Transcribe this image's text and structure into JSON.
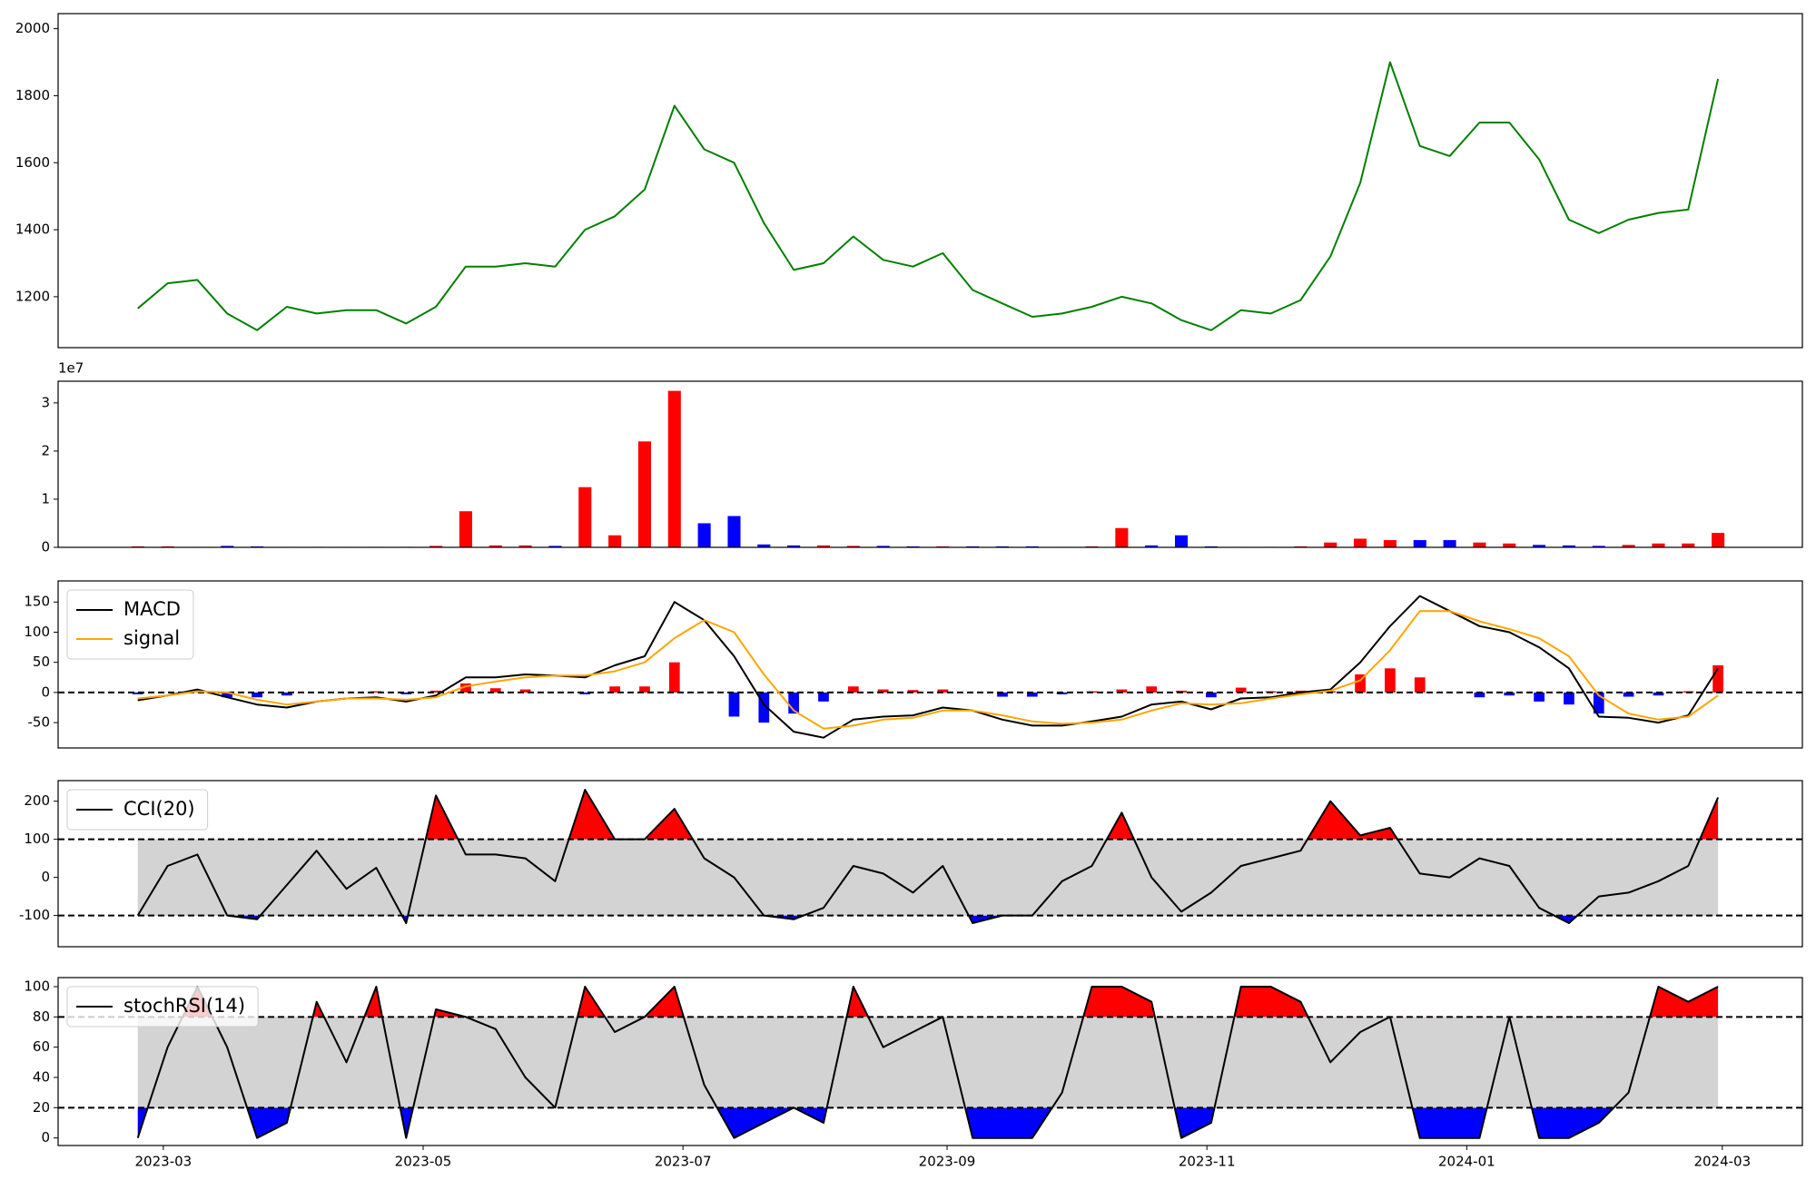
{
  "chart_data": {
    "type": "panels",
    "x": [
      19411,
      19418,
      19425,
      19432,
      19439,
      19446,
      19453,
      19460,
      19467,
      19474,
      19481,
      19488,
      19495,
      19502,
      19509,
      19516,
      19523,
      19530,
      19537,
      19544,
      19551,
      19558,
      19565,
      19572,
      19579,
      19586,
      19593,
      19600,
      19607,
      19614,
      19621,
      19628,
      19635,
      19642,
      19649,
      19656,
      19663,
      19670,
      19677,
      19684,
      19691,
      19698,
      19705,
      19712,
      19719,
      19726,
      19733,
      19740,
      19747,
      19754,
      19761,
      19768,
      19775,
      19782
    ],
    "xlim": [
      19392.3,
      19801.8
    ],
    "xticks": [
      {
        "value": 19417,
        "label": "2023-03"
      },
      {
        "value": 19478,
        "label": "2023-05"
      },
      {
        "value": 19539,
        "label": "2023-07"
      },
      {
        "value": 19601,
        "label": "2023-09"
      },
      {
        "value": 19662,
        "label": "2023-11"
      },
      {
        "value": 19723,
        "label": "2024-01"
      },
      {
        "value": 19783,
        "label": "2024-03"
      }
    ],
    "panels": [
      {
        "type": "line",
        "color": "green",
        "ylim": [
          1048,
          2045
        ],
        "yticks": [
          1200,
          1400,
          1600,
          1800,
          2000
        ],
        "values": [
          1165,
          1240,
          1250,
          1150,
          1100,
          1170,
          1150,
          1160,
          1160,
          1120,
          1170,
          1290,
          1290,
          1300,
          1290,
          1400,
          1440,
          1520,
          1770,
          1640,
          1600,
          1420,
          1280,
          1300,
          1380,
          1310,
          1290,
          1330,
          1220,
          1180,
          1140,
          1150,
          1170,
          1200,
          1180,
          1130,
          1100,
          1160,
          1150,
          1190,
          1320,
          1540,
          1900,
          1650,
          1620,
          1720,
          1720,
          1610,
          1430,
          1390,
          1430,
          1450,
          1460,
          1850
        ]
      },
      {
        "type": "bar",
        "offset_label": "1e7",
        "up_color": "red",
        "down_color": "blue",
        "ylim": [
          0,
          3.45
        ],
        "yticks": [
          0,
          1,
          2,
          3
        ],
        "values": [
          0.02,
          0.02,
          0.01,
          0.03,
          0.02,
          0.01,
          0.01,
          0.01,
          0.01,
          0.01,
          0.03,
          0.75,
          0.04,
          0.04,
          0.03,
          1.25,
          0.25,
          2.2,
          3.25,
          0.5,
          0.65,
          0.06,
          0.04,
          0.04,
          0.03,
          0.03,
          0.02,
          0.02,
          0.02,
          0.02,
          0.02,
          0.01,
          0.02,
          0.4,
          0.04,
          0.25,
          0.02,
          0.01,
          0.01,
          0.02,
          0.1,
          0.18,
          0.15,
          0.15,
          0.15,
          0.1,
          0.08,
          0.05,
          0.04,
          0.03,
          0.05,
          0.08,
          0.08,
          0.3
        ]
      },
      {
        "type": "macd",
        "legend": "upper left",
        "ylim": [
          -92,
          185
        ],
        "yticks": [
          -50,
          0,
          50,
          100,
          150
        ],
        "hlines": [
          0
        ],
        "series": [
          {
            "name": "MACD",
            "color": "black",
            "values": [
              -13,
              -5,
              5,
              -8,
              -20,
              -25,
              -15,
              -10,
              -8,
              -15,
              -5,
              25,
              25,
              30,
              28,
              25,
              45,
              60,
              150,
              120,
              60,
              -20,
              -65,
              -75,
              -45,
              -40,
              -38,
              -25,
              -30,
              -45,
              -55,
              -55,
              -48,
              -40,
              -20,
              -15,
              -28,
              -10,
              -8,
              0,
              5,
              50,
              110,
              160,
              135,
              110,
              100,
              75,
              40,
              -40,
              -42,
              -50,
              -38,
              40
            ]
          },
          {
            "name": "signal",
            "color": "orange",
            "values": [
              -10,
              -5,
              2,
              0,
              -12,
              -20,
              -15,
              -10,
              -10,
              -12,
              -8,
              10,
              18,
              25,
              28,
              28,
              35,
              50,
              90,
              120,
              100,
              30,
              -30,
              -60,
              -55,
              -45,
              -42,
              -30,
              -30,
              -38,
              -48,
              -52,
              -50,
              -45,
              -30,
              -18,
              -20,
              -18,
              -10,
              -3,
              3,
              20,
              70,
              135,
              135,
              118,
              105,
              90,
              60,
              -5,
              -35,
              -45,
              -40,
              -5
            ]
          }
        ],
        "histogram": {
          "up_color": "red",
          "down_color": "blue",
          "values": [
            -3,
            0,
            3,
            -8,
            -8,
            -5,
            0,
            0,
            2,
            -3,
            3,
            15,
            7,
            5,
            0,
            -3,
            10,
            10,
            50,
            0,
            -40,
            -50,
            -35,
            -15,
            10,
            5,
            4,
            5,
            0,
            -7,
            -7,
            -3,
            2,
            5,
            10,
            3,
            -8,
            8,
            2,
            3,
            2,
            30,
            40,
            25,
            0,
            -8,
            -5,
            -15,
            -20,
            -35,
            -7,
            -5,
            2,
            45
          ]
        }
      },
      {
        "type": "band",
        "legend": "upper left",
        "ylim": [
          -182,
          254
        ],
        "yticks": [
          -100,
          0,
          100,
          200
        ],
        "bands": [
          -100,
          100
        ],
        "band_color": "lightgray",
        "above_color": "red",
        "below_color": "blue",
        "series": [
          {
            "name": "CCI(20)",
            "color": "black",
            "values": [
              -100,
              30,
              60,
              -100,
              -110,
              -20,
              70,
              -30,
              25,
              -120,
              215,
              60,
              60,
              50,
              -10,
              230,
              100,
              100,
              180,
              50,
              0,
              -100,
              -110,
              -80,
              30,
              10,
              -40,
              30,
              -120,
              -100,
              -100,
              -10,
              30,
              170,
              0,
              -90,
              -40,
              30,
              50,
              70,
              200,
              110,
              130,
              10,
              0,
              50,
              30,
              -80,
              -120,
              -50,
              -40,
              -10,
              30,
              210
            ]
          }
        ]
      },
      {
        "type": "band",
        "legend": "upper left",
        "ylim": [
          -5,
          106
        ],
        "yticks": [
          0,
          20,
          40,
          60,
          80,
          100
        ],
        "bands": [
          20,
          80
        ],
        "band_color": "lightgray",
        "above_color": "red",
        "below_color": "blue",
        "series": [
          {
            "name": "stochRSI(14)",
            "color": "black",
            "values": [
              0,
              60,
              100,
              60,
              0,
              10,
              90,
              50,
              100,
              0,
              85,
              80,
              72,
              40,
              20,
              100,
              70,
              80,
              100,
              35,
              0,
              10,
              20,
              10,
              100,
              60,
              70,
              80,
              0,
              0,
              0,
              30,
              100,
              100,
              90,
              0,
              10,
              100,
              100,
              90,
              50,
              70,
              80,
              0,
              0,
              0,
              80,
              0,
              0,
              10,
              30,
              100,
              90,
              100
            ]
          }
        ]
      }
    ]
  }
}
